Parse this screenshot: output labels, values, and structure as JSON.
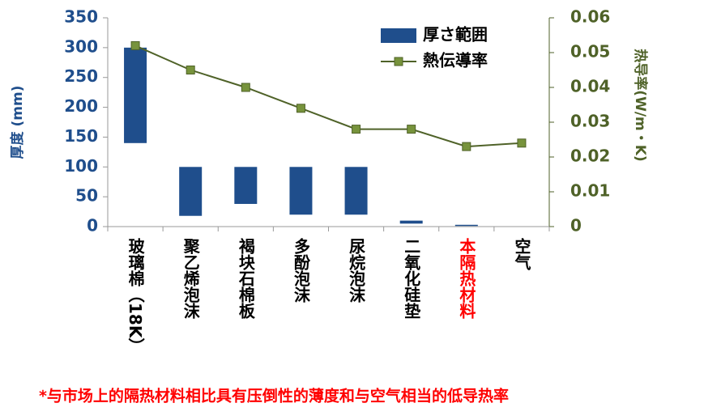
{
  "chart_data": {
    "type": "range_bar_line",
    "ylabel": "厚度 (mm)",
    "y2label": "热导率(W/m・K)",
    "categories": [
      "玻璃棉（18K）",
      "聚乙烯泡沫",
      "褐块石棉板",
      "多酚泡沫",
      "尿烷泡沫",
      "二氧化硅垫",
      "本隔热材料",
      "空气"
    ],
    "category_colors": [
      "#000000",
      "#000000",
      "#000000",
      "#000000",
      "#000000",
      "#000000",
      "#ff0000",
      "#000000"
    ],
    "series": [
      {
        "name": "厚さ範囲",
        "type": "range_bar",
        "color": "#1f4e8c",
        "low": [
          140,
          18,
          38,
          20,
          20,
          5,
          1,
          null
        ],
        "high": [
          300,
          100,
          100,
          100,
          100,
          10,
          3,
          null
        ]
      },
      {
        "name": "熱伝導率",
        "type": "line",
        "axis": "y2",
        "color": "#4f6228",
        "marker_color": "#77933c",
        "values": [
          0.052,
          0.045,
          0.04,
          0.034,
          0.028,
          0.028,
          0.023,
          0.024
        ]
      }
    ],
    "ylim": [
      0,
      350
    ],
    "yticks": [
      0,
      50,
      100,
      150,
      200,
      250,
      300,
      350
    ],
    "ycolor": "#1f4e8c",
    "y2lim": [
      0,
      0.06
    ],
    "y2ticks": [
      0,
      0.01,
      0.02,
      0.03,
      0.04,
      0.05,
      0.06
    ],
    "y2color": "#4f6228",
    "legend": "upper right",
    "note": "*与市场上的隔热材料相比具有压倒性的薄度和与空气相当的低导热率",
    "note_color": "#ff0000"
  }
}
